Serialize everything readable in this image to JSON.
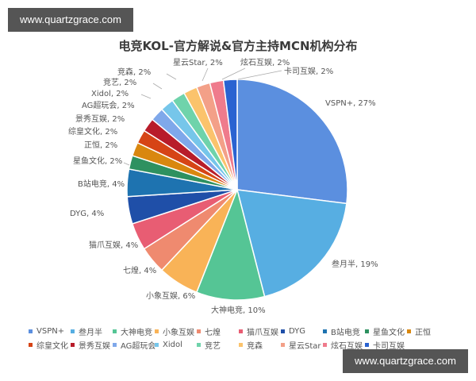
{
  "watermarks": {
    "top": "www.quartzgrace.com",
    "bottom": "www.quartzgrace.com"
  },
  "chart_data": {
    "type": "pie",
    "title": "电竞KOL-官方解说&官方主持MCN机构分布",
    "start_angle_deg": 0,
    "direction": "clockwise",
    "categories": [
      "VSPN+",
      "叁月半",
      "大神电竞",
      "小象互娱",
      "七煌",
      "猫爪互娱",
      "DYG",
      "B站电竞",
      "星鱼文化",
      "正恒",
      "综皇文化",
      "景秀互娱",
      "AG超玩会",
      "Xidol",
      "竞艺",
      "竞森",
      "星云Star",
      "炫石互娱",
      "卡司互娱"
    ],
    "values": [
      27,
      19,
      10,
      6,
      4,
      4,
      4,
      4,
      2,
      2,
      2,
      2,
      2,
      2,
      2,
      2,
      2,
      2,
      2
    ],
    "colors": [
      "#5b8fdf",
      "#57aee2",
      "#55c595",
      "#f9b357",
      "#ef8a6f",
      "#e85d73",
      "#1f4fa8",
      "#1e73b0",
      "#2e9160",
      "#d9870f",
      "#d64416",
      "#b81c2a",
      "#7fa8ea",
      "#76c6ea",
      "#6fd3ab",
      "#fbc36c",
      "#f3a088",
      "#ef7b8c",
      "#2a63d1"
    ],
    "data_labels": [
      "VSPN+, 27%",
      "叁月半, 19%",
      "大神电竞, 10%",
      "小象互娱, 6%",
      "七煌, 4%",
      "猫爪互娱, 4%",
      "DYG, 4%",
      "B站电竞, 4%",
      "星鱼文化, 2%",
      "正恒, 2%",
      "综皇文化, 2%",
      "景秀互娱, 2%",
      "AG超玩会, 2%",
      "Xidol, 2%",
      "竞艺, 2%",
      "竞森, 2%",
      "星云Star, 2%",
      "炫石互娱, 2%",
      "卡司互娱, 2%"
    ],
    "legend": {
      "position": "bottom",
      "rows": [
        [
          "VSPN+",
          "叁月半",
          "大神电竞",
          "小象互娱",
          "七煌",
          "猫爪互娱",
          "DYG",
          "B站电竞",
          "星鱼文化",
          "正恒"
        ],
        [
          "综皇文化",
          "景秀互娱",
          "AG超玩会",
          "Xidol",
          "竞艺",
          "竞森",
          "星云Star",
          "炫石互娱",
          "卡司互娱"
        ]
      ]
    }
  }
}
